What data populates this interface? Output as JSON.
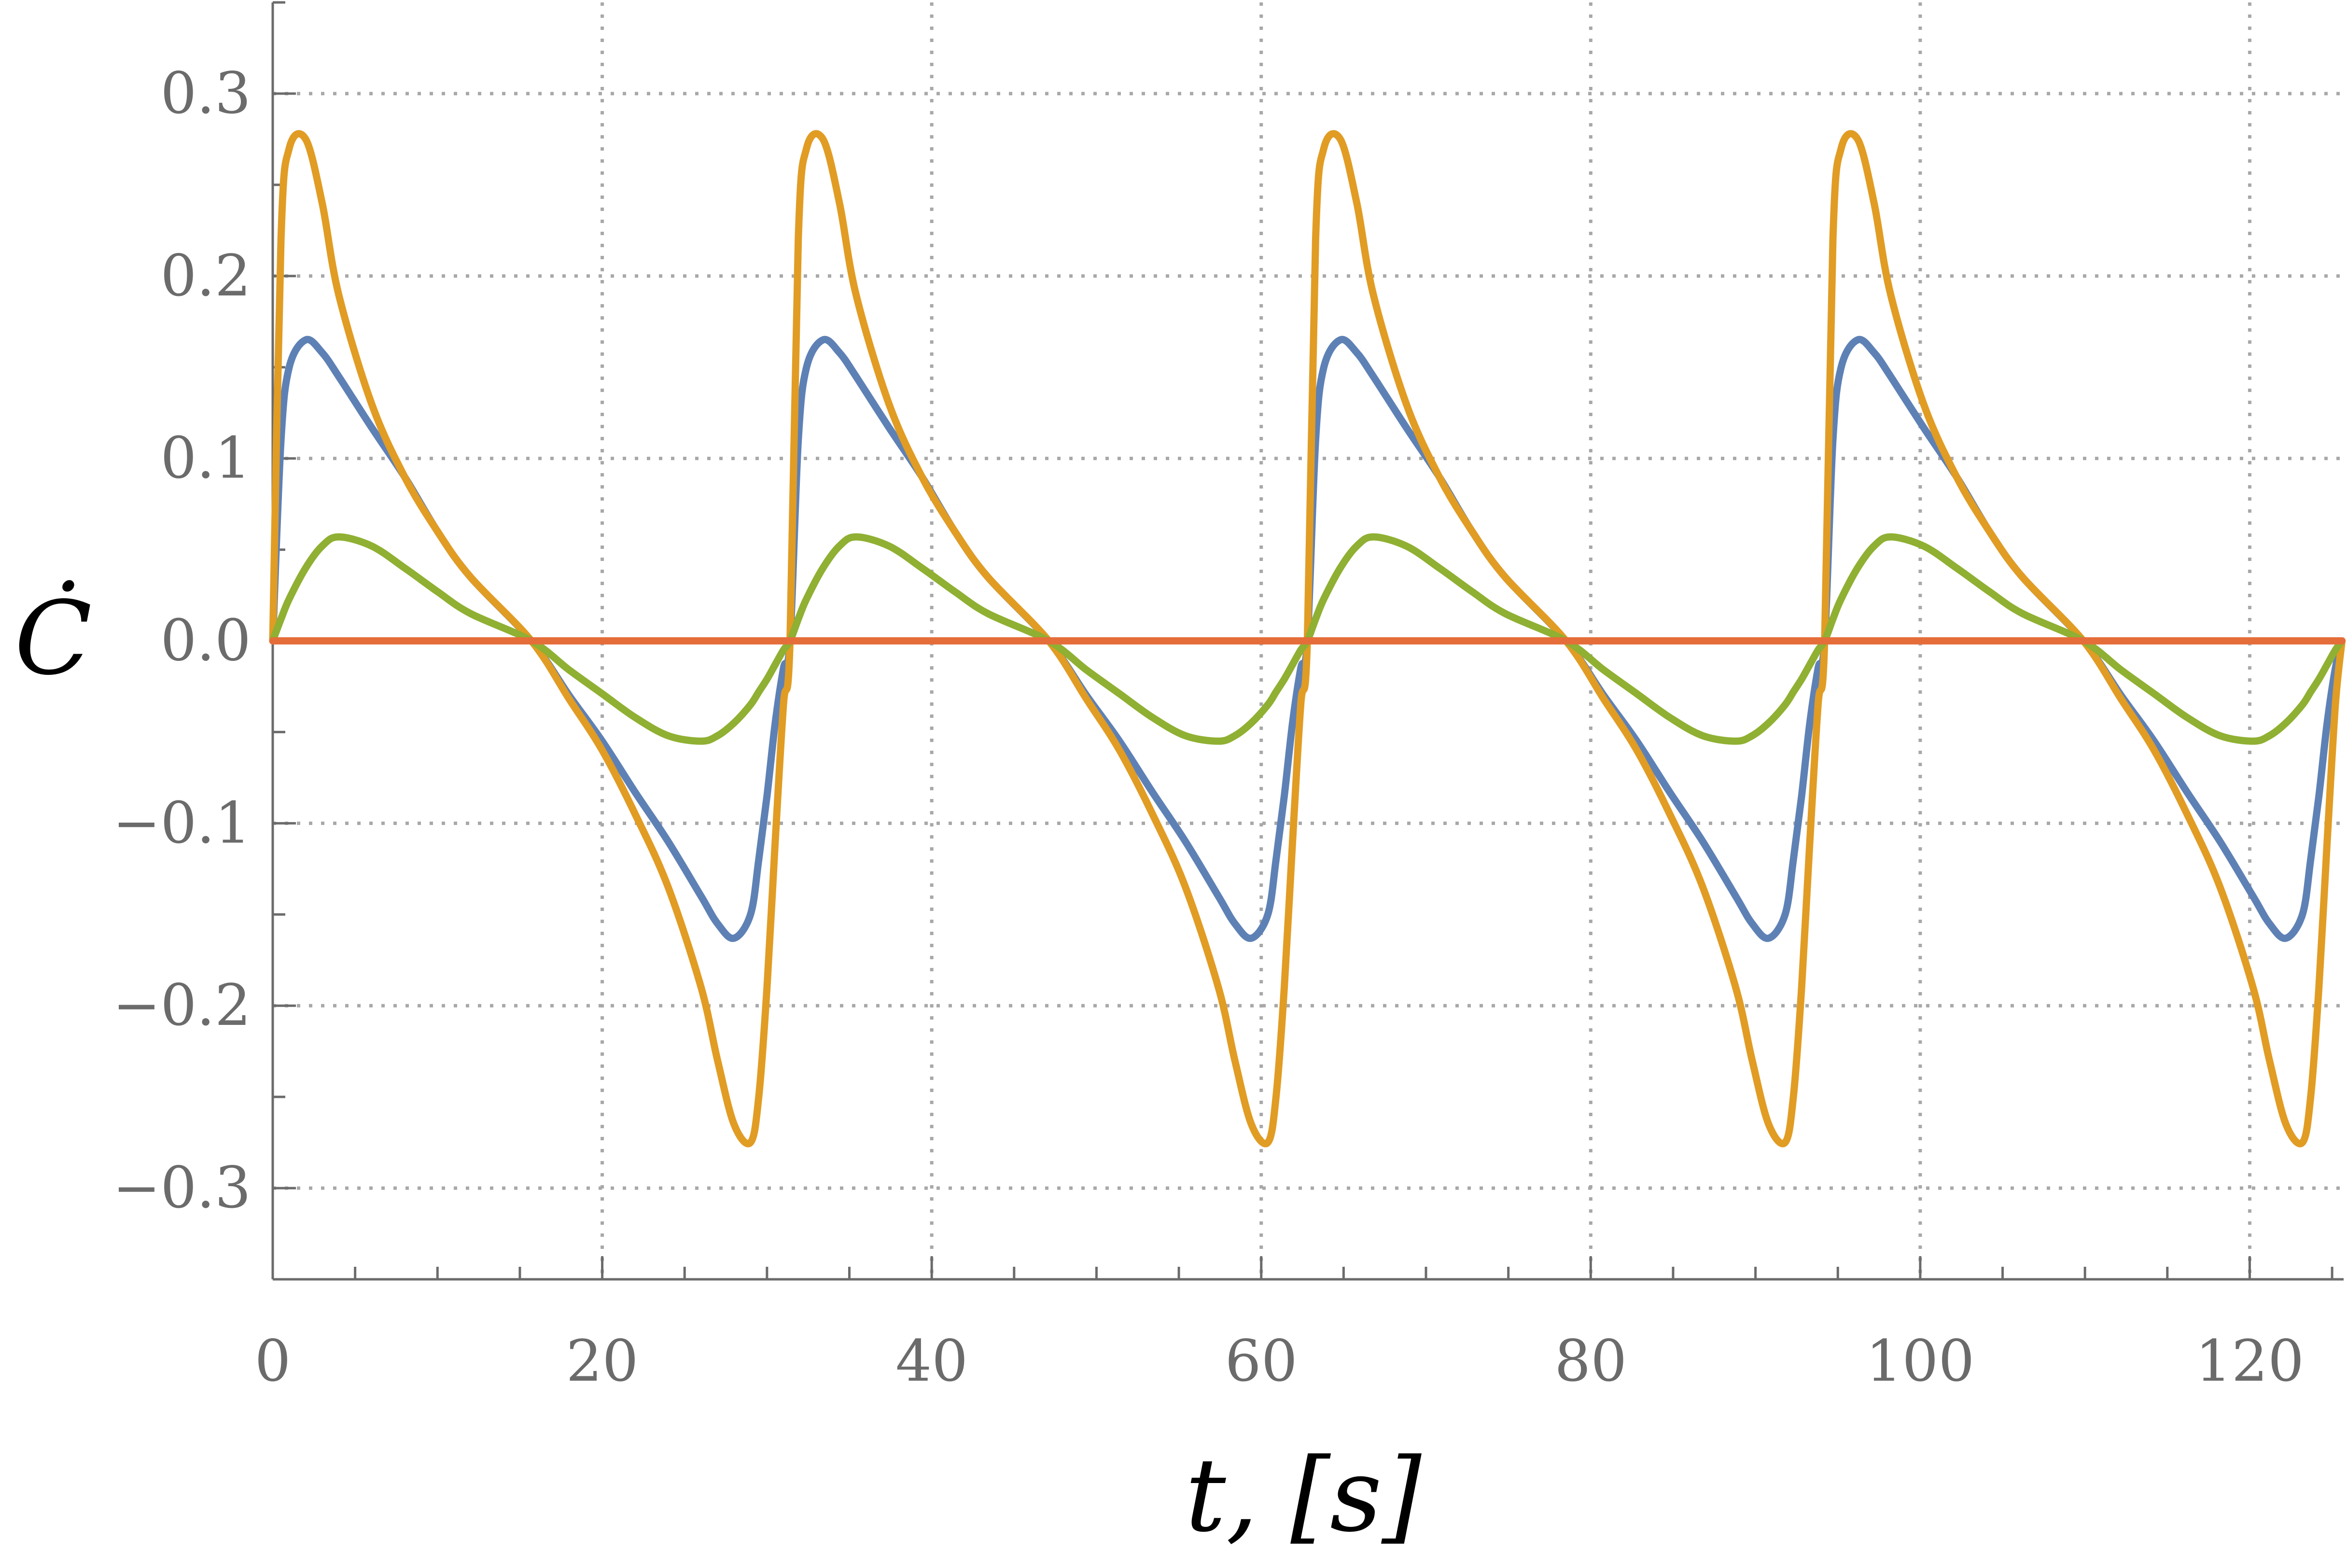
{
  "chart_data": {
    "type": "line",
    "title": "",
    "xlabel": "t, [s]",
    "ylabel": "Ċ",
    "xlim": [
      0,
      125.7
    ],
    "ylim": [
      -0.35,
      0.35
    ],
    "grid": true,
    "legend": "none",
    "x_ticks": [
      0,
      20,
      40,
      60,
      80,
      100,
      120
    ],
    "x_tick_labels": [
      "0",
      "20",
      "40",
      "60",
      "80",
      "100",
      "120"
    ],
    "y_ticks": [
      0.3,
      0.2,
      0.1,
      0.0,
      -0.1,
      -0.2,
      -0.3
    ],
    "y_tick_labels": [
      "0.3",
      "0.2",
      "0.1",
      "0.0",
      "−0.1",
      "−0.2",
      "−0.3"
    ],
    "period": 31.4,
    "sample_x": [
      0,
      0.5,
      1,
      2,
      3,
      4,
      6,
      8,
      10,
      12,
      15.7,
      18,
      20,
      22,
      24,
      26,
      27,
      28,
      29,
      29.5,
      30,
      30.5,
      31,
      31.4
    ],
    "series": [
      {
        "color": "#5e81b5",
        "values": [
          0,
          0.11,
          0.15,
          0.165,
          0.158,
          0.145,
          0.117,
          0.09,
          0.06,
          0.035,
          0,
          -0.03,
          -0.055,
          -0.083,
          -0.11,
          -0.14,
          -0.155,
          -0.163,
          -0.15,
          -0.12,
          -0.085,
          -0.045,
          -0.015,
          0
        ]
      },
      {
        "color": "#e19c24",
        "values": [
          0,
          0.22,
          0.27,
          0.275,
          0.24,
          0.19,
          0.13,
          0.09,
          0.06,
          0.035,
          0,
          -0.032,
          -0.06,
          -0.095,
          -0.135,
          -0.19,
          -0.23,
          -0.265,
          -0.275,
          -0.25,
          -0.19,
          -0.11,
          -0.035,
          0
        ]
      },
      {
        "color": "#8fb032",
        "values": [
          0,
          0.012,
          0.023,
          0.04,
          0.052,
          0.057,
          0.052,
          0.04,
          0.027,
          0.015,
          0,
          -0.016,
          -0.029,
          -0.042,
          -0.052,
          -0.055,
          -0.052,
          -0.045,
          -0.035,
          -0.028,
          -0.021,
          -0.013,
          -0.005,
          0
        ]
      },
      {
        "color": "#e56d3a",
        "values": [
          0,
          0,
          0,
          0,
          0,
          0,
          0,
          0,
          0,
          0,
          0,
          0,
          0,
          0,
          0,
          0,
          0,
          0,
          0,
          0,
          0,
          0,
          0,
          0
        ]
      }
    ]
  }
}
